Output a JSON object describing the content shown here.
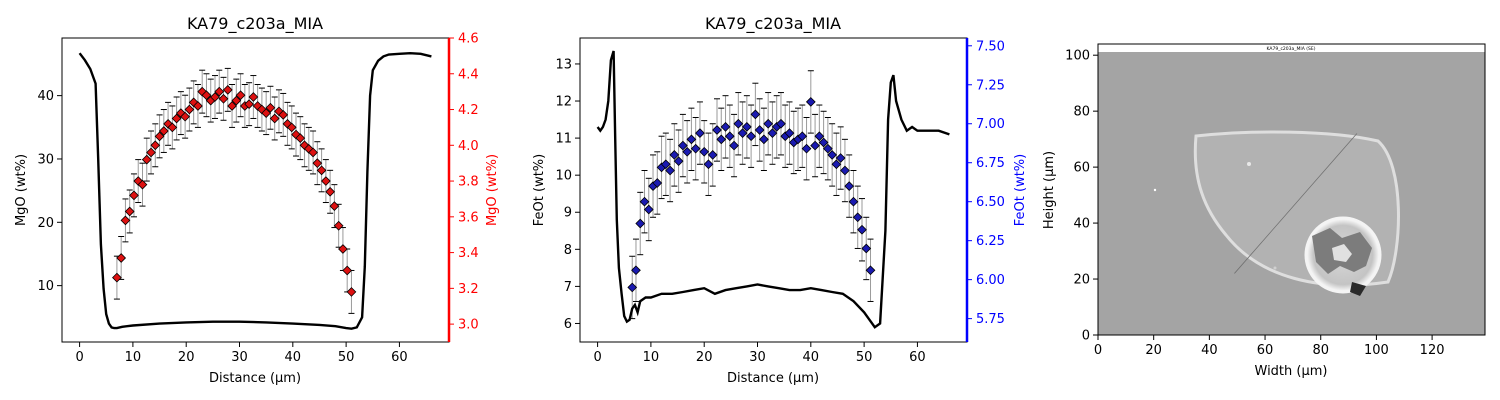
{
  "chart_data": [
    {
      "type": "line",
      "title": "KA79_c203a_MIA",
      "xlabel": "Distance (µm)",
      "ylabel": "MgO (wt%)",
      "ylabel_right": "MgO (wt%)",
      "right_axis_color": "#ff0000",
      "marker_color": "#dd1111",
      "xlim": [
        -3.3,
        69.3
      ],
      "ylim": [
        1.1,
        49.1
      ],
      "ylim_right": [
        2.9,
        4.6
      ],
      "xticks": [
        0,
        10,
        20,
        30,
        40,
        50,
        60
      ],
      "yticks": [
        10,
        20,
        30,
        40
      ],
      "yticks_right": [
        3.0,
        3.2,
        3.4,
        3.6,
        3.8,
        4.0,
        4.2,
        4.4,
        4.6
      ],
      "ytick_labels_right": [
        "3.0",
        "3.2",
        "3.4",
        "3.6",
        "3.8",
        "4.0",
        "4.2",
        "4.4",
        "4.6"
      ],
      "grid": false,
      "line_series": {
        "x": [
          0,
          1,
          2,
          3,
          3.5,
          4,
          4.5,
          5,
          5.5,
          6,
          6.5,
          7,
          8,
          10,
          15,
          20,
          25,
          30,
          35,
          40,
          45,
          48,
          50,
          51,
          52,
          53,
          53.5,
          54,
          54.5,
          55,
          56,
          57,
          58,
          60,
          62,
          64,
          66
        ],
        "y": [
          46.7,
          45.6,
          44.2,
          41.9,
          30,
          16.5,
          9.5,
          5.5,
          4,
          3.4,
          3.3,
          3.3,
          3.5,
          3.7,
          4,
          4.2,
          4.3,
          4.3,
          4.2,
          4,
          3.8,
          3.6,
          3.3,
          3.2,
          3.4,
          5,
          13,
          28,
          40,
          44,
          45.5,
          46.2,
          46.5,
          46.6,
          46.7,
          46.6,
          46.2
        ]
      },
      "marker_series": {
        "x": [
          7,
          7.8,
          8.6,
          9.4,
          10.2,
          11,
          11.8,
          12.6,
          13.4,
          14.2,
          15,
          15.8,
          16.6,
          17.4,
          18.2,
          19,
          19.8,
          20.6,
          21.4,
          22.2,
          23,
          23.8,
          24.6,
          25.4,
          26.2,
          27,
          27.8,
          28.6,
          29.4,
          30.2,
          31,
          31.8,
          32.6,
          33.4,
          34.2,
          35,
          35.8,
          36.6,
          37.4,
          38.2,
          39,
          39.8,
          40.6,
          41.4,
          42.2,
          43,
          43.8,
          44.6,
          45.4,
          46.2,
          47,
          47.8,
          48.6,
          49.4,
          50.2,
          51
        ],
        "y": [
          3.26,
          3.37,
          3.58,
          3.63,
          3.72,
          3.8,
          3.78,
          3.92,
          3.96,
          4.0,
          4.05,
          4.08,
          4.12,
          4.1,
          4.15,
          4.18,
          4.16,
          4.2,
          4.24,
          4.22,
          4.3,
          4.28,
          4.25,
          4.27,
          4.3,
          4.26,
          4.31,
          4.22,
          4.25,
          4.28,
          4.22,
          4.23,
          4.27,
          4.22,
          4.2,
          4.18,
          4.21,
          4.15,
          4.19,
          4.17,
          4.12,
          4.1,
          4.06,
          4.04,
          4.0,
          3.98,
          3.96,
          3.9,
          3.86,
          3.8,
          3.74,
          3.66,
          3.55,
          3.42,
          3.3,
          3.18
        ],
        "yerr": [
          0.12,
          0.12,
          0.12,
          0.12,
          0.12,
          0.12,
          0.12,
          0.12,
          0.12,
          0.12,
          0.12,
          0.12,
          0.12,
          0.12,
          0.12,
          0.12,
          0.12,
          0.12,
          0.12,
          0.12,
          0.12,
          0.12,
          0.12,
          0.12,
          0.12,
          0.12,
          0.12,
          0.12,
          0.12,
          0.12,
          0.12,
          0.12,
          0.12,
          0.12,
          0.12,
          0.12,
          0.12,
          0.12,
          0.12,
          0.12,
          0.12,
          0.12,
          0.12,
          0.12,
          0.12,
          0.12,
          0.12,
          0.12,
          0.12,
          0.12,
          0.12,
          0.12,
          0.12,
          0.12,
          0.12,
          0.12
        ]
      }
    },
    {
      "type": "line",
      "title": "KA79_c203a_MIA",
      "xlabel": "Distance (µm)",
      "ylabel": "FeOt (wt%)",
      "ylabel_right": "FeOt (wt%)",
      "right_axis_color": "#0000ff",
      "marker_color": "#1a1ab0",
      "xlim": [
        -3.3,
        69.3
      ],
      "ylim": [
        5.5,
        13.7
      ],
      "ylim_right": [
        5.6,
        7.55
      ],
      "xticks": [
        0,
        10,
        20,
        30,
        40,
        50,
        60
      ],
      "yticks": [
        6,
        7,
        8,
        9,
        10,
        11,
        12,
        13
      ],
      "yticks_right": [
        5.75,
        6.0,
        6.25,
        6.5,
        6.75,
        7.0,
        7.25,
        7.5
      ],
      "ytick_labels_right": [
        "5.75",
        "6.00",
        "6.25",
        "6.50",
        "6.75",
        "7.00",
        "7.25",
        "7.50"
      ],
      "grid": false,
      "line_series": {
        "x": [
          0,
          0.5,
          1,
          1.5,
          2,
          2.5,
          3,
          3.3,
          3.6,
          4,
          4.5,
          5,
          5.5,
          6,
          6.5,
          7,
          7.5,
          8,
          9,
          10,
          12,
          14,
          16,
          18,
          20,
          22,
          24,
          26,
          28,
          30,
          32,
          34,
          36,
          38,
          40,
          42,
          44,
          46,
          48,
          50,
          51,
          52,
          53,
          54,
          54.5,
          55,
          55.5,
          56,
          57,
          58,
          59,
          60,
          62,
          64,
          66
        ],
        "y": [
          11.3,
          11.2,
          11.3,
          11.5,
          12,
          13.1,
          13.35,
          11,
          8.8,
          7.5,
          6.8,
          6.2,
          6.05,
          6.1,
          6.4,
          6.5,
          6.3,
          6.6,
          6.7,
          6.7,
          6.8,
          6.8,
          6.85,
          6.9,
          6.95,
          6.8,
          6.9,
          6.95,
          7.0,
          7.05,
          7.0,
          6.95,
          6.9,
          6.9,
          6.95,
          6.9,
          6.85,
          6.8,
          6.6,
          6.3,
          6.1,
          5.9,
          6.0,
          8.5,
          11.5,
          12.5,
          12.7,
          12,
          11.5,
          11.2,
          11.3,
          11.2,
          11.2,
          11.2,
          11.1
        ]
      },
      "marker_series": {
        "x": [
          6.5,
          7.2,
          8,
          8.8,
          9.6,
          10.4,
          11.2,
          12,
          12.8,
          13.6,
          14.4,
          15.2,
          16,
          16.8,
          17.6,
          18.4,
          19.2,
          20,
          20.8,
          21.6,
          22.4,
          23.2,
          24,
          24.8,
          25.6,
          26.4,
          27.2,
          28,
          28.8,
          29.6,
          30.4,
          31.2,
          32,
          32.8,
          33.6,
          34.4,
          35.2,
          36,
          36.8,
          37.6,
          38.4,
          39.2,
          40,
          40.8,
          41.6,
          42.4,
          43.2,
          44,
          44.8,
          45.6,
          46.4,
          47.2,
          48,
          48.8,
          49.6,
          50.4,
          51.2
        ],
        "y": [
          5.95,
          6.06,
          6.36,
          6.5,
          6.45,
          6.6,
          6.62,
          6.72,
          6.74,
          6.7,
          6.8,
          6.76,
          6.86,
          6.82,
          6.9,
          6.84,
          6.94,
          6.82,
          6.74,
          6.8,
          6.96,
          6.9,
          6.98,
          6.92,
          6.86,
          7.0,
          6.94,
          6.98,
          6.92,
          7.06,
          6.96,
          6.9,
          7.0,
          6.94,
          6.98,
          7.0,
          6.92,
          6.94,
          6.88,
          6.9,
          6.92,
          6.84,
          7.14,
          6.86,
          6.92,
          6.88,
          6.84,
          6.8,
          6.74,
          6.78,
          6.7,
          6.6,
          6.5,
          6.4,
          6.32,
          6.2,
          6.06
        ],
        "yerr": [
          0.2,
          0.2,
          0.2,
          0.2,
          0.2,
          0.2,
          0.2,
          0.2,
          0.2,
          0.2,
          0.2,
          0.2,
          0.2,
          0.2,
          0.2,
          0.2,
          0.2,
          0.2,
          0.2,
          0.2,
          0.2,
          0.2,
          0.2,
          0.2,
          0.2,
          0.2,
          0.2,
          0.2,
          0.2,
          0.2,
          0.2,
          0.2,
          0.2,
          0.2,
          0.2,
          0.2,
          0.2,
          0.2,
          0.2,
          0.2,
          0.2,
          0.2,
          0.2,
          0.2,
          0.2,
          0.2,
          0.2,
          0.2,
          0.2,
          0.2,
          0.2,
          0.2,
          0.2,
          0.2,
          0.2,
          0.2,
          0.2
        ]
      }
    },
    {
      "type": "image",
      "title": "",
      "image_caption": "KA79_c203a_MIA (SE)",
      "xlabel": "Width (µm)",
      "ylabel": "Height (µm)",
      "xlim": [
        0,
        139
      ],
      "ylim": [
        0,
        104
      ],
      "xticks": [
        0,
        20,
        40,
        60,
        80,
        100,
        120
      ],
      "yticks": [
        0,
        20,
        40,
        60,
        80,
        100
      ],
      "grid": false,
      "profile_line": {
        "x": [
          49,
          93
        ],
        "y": [
          22,
          72
        ]
      }
    }
  ]
}
